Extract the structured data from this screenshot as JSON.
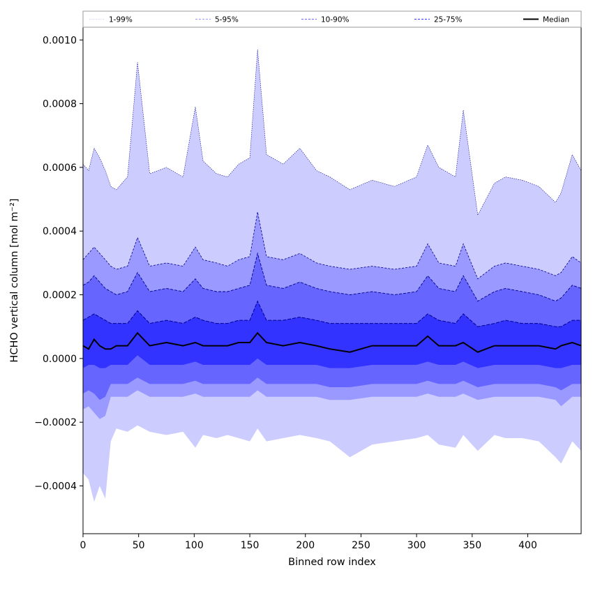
{
  "chart_data": {
    "type": "area",
    "title": "",
    "xlabel": "Binned row index",
    "ylabel": "HCHO vertical column [mol m⁻²]",
    "xlim": [
      0,
      448
    ],
    "ylim": [
      -0.00055,
      0.00104
    ],
    "xticks": [
      0,
      50,
      100,
      150,
      200,
      250,
      300,
      350,
      400
    ],
    "xtick_labels": [
      "0",
      "50",
      "100",
      "150",
      "200",
      "250",
      "300",
      "350",
      "400"
    ],
    "yticks": [
      -0.0004,
      -0.0002,
      0.0,
      0.0002,
      0.0004,
      0.0006,
      0.0008,
      0.001
    ],
    "ytick_labels": [
      "−0.0004",
      "−0.0002",
      "0.0000",
      "0.0002",
      "0.0004",
      "0.0006",
      "0.0008",
      "0.0010"
    ],
    "grid": false,
    "legend_position": "top, above plot, single row",
    "colors": {
      "band_1_99": "#ccccff",
      "band_5_95": "#9999ff",
      "band_10_90": "#6666ff",
      "band_25_75": "#3333ff",
      "percentile_lines": "#00008b",
      "median": "#000000"
    },
    "legend": [
      {
        "label": "1-99%",
        "color": "#ccccff",
        "style": "dotted"
      },
      {
        "label": "5-95%",
        "color": "#9999ff",
        "style": "dashed"
      },
      {
        "label": "10-90%",
        "color": "#6666ff",
        "style": "dashed"
      },
      {
        "label": "25-75%",
        "color": "#3333ff",
        "style": "dashed"
      },
      {
        "label": "Median",
        "color": "#000000",
        "style": "solid"
      }
    ],
    "x": [
      0,
      5,
      10,
      15,
      20,
      25,
      30,
      40,
      49,
      60,
      75,
      90,
      101,
      108,
      120,
      130,
      140,
      150,
      157,
      165,
      180,
      195,
      210,
      222,
      240,
      260,
      280,
      300,
      310,
      320,
      335,
      342,
      355,
      370,
      380,
      395,
      410,
      425,
      430,
      440,
      448
    ],
    "series": [
      {
        "name": "p99",
        "values": [
          0.00061,
          0.00059,
          0.00066,
          0.00063,
          0.00059,
          0.00054,
          0.00053,
          0.00057,
          0.00093,
          0.00058,
          0.0006,
          0.00057,
          0.00079,
          0.00062,
          0.00058,
          0.00057,
          0.00061,
          0.00063,
          0.00097,
          0.00064,
          0.00061,
          0.00066,
          0.00059,
          0.00057,
          0.00053,
          0.00056,
          0.00054,
          0.00057,
          0.00067,
          0.0006,
          0.00057,
          0.00078,
          0.00045,
          0.00055,
          0.00057,
          0.00056,
          0.00054,
          0.00049,
          0.00052,
          0.00064,
          0.00059
        ]
      },
      {
        "name": "p95",
        "values": [
          0.00031,
          0.00033,
          0.00035,
          0.00033,
          0.00031,
          0.00029,
          0.00028,
          0.00029,
          0.00038,
          0.00029,
          0.0003,
          0.00029,
          0.00035,
          0.00031,
          0.0003,
          0.00029,
          0.00031,
          0.00032,
          0.00046,
          0.00032,
          0.00031,
          0.00033,
          0.0003,
          0.00029,
          0.00028,
          0.00029,
          0.00028,
          0.00029,
          0.00036,
          0.0003,
          0.00029,
          0.00036,
          0.00025,
          0.00029,
          0.0003,
          0.00029,
          0.00028,
          0.00026,
          0.00027,
          0.00032,
          0.0003
        ]
      },
      {
        "name": "p90",
        "values": [
          0.00023,
          0.00024,
          0.00026,
          0.00024,
          0.00022,
          0.00021,
          0.0002,
          0.00021,
          0.00027,
          0.00021,
          0.00022,
          0.00021,
          0.00025,
          0.00022,
          0.00021,
          0.00021,
          0.00022,
          0.00023,
          0.00033,
          0.00023,
          0.00022,
          0.00024,
          0.00022,
          0.00021,
          0.0002,
          0.00021,
          0.0002,
          0.00021,
          0.00026,
          0.00022,
          0.00021,
          0.00026,
          0.00018,
          0.00021,
          0.00022,
          0.00021,
          0.0002,
          0.00018,
          0.00019,
          0.00023,
          0.00022
        ]
      },
      {
        "name": "p75",
        "values": [
          0.00012,
          0.00013,
          0.00014,
          0.00013,
          0.00012,
          0.00011,
          0.00011,
          0.00011,
          0.00015,
          0.00011,
          0.00012,
          0.00011,
          0.00013,
          0.00012,
          0.00011,
          0.00011,
          0.00012,
          0.00012,
          0.00018,
          0.00012,
          0.00012,
          0.00013,
          0.00012,
          0.00011,
          0.00011,
          0.00011,
          0.00011,
          0.00011,
          0.00014,
          0.00012,
          0.00011,
          0.00014,
          0.0001,
          0.00011,
          0.00012,
          0.00011,
          0.00011,
          0.0001,
          0.0001,
          0.00012,
          0.00012
        ]
      },
      {
        "name": "median",
        "values": [
          4e-05,
          3e-05,
          6e-05,
          4e-05,
          3e-05,
          3e-05,
          4e-05,
          4e-05,
          8e-05,
          4e-05,
          5e-05,
          4e-05,
          5e-05,
          4e-05,
          4e-05,
          4e-05,
          5e-05,
          5e-05,
          8e-05,
          5e-05,
          4e-05,
          5e-05,
          4e-05,
          3e-05,
          2e-05,
          4e-05,
          4e-05,
          4e-05,
          7e-05,
          4e-05,
          4e-05,
          5e-05,
          2e-05,
          4e-05,
          4e-05,
          4e-05,
          4e-05,
          3e-05,
          4e-05,
          5e-05,
          4e-05
        ]
      },
      {
        "name": "p25",
        "values": [
          -3e-05,
          -2e-05,
          -2e-05,
          -3e-05,
          -3e-05,
          -2e-05,
          -2e-05,
          -2e-05,
          1e-05,
          -2e-05,
          -2e-05,
          -2e-05,
          -1e-05,
          -2e-05,
          -2e-05,
          -2e-05,
          -2e-05,
          -2e-05,
          0.0,
          -2e-05,
          -2e-05,
          -2e-05,
          -2e-05,
          -3e-05,
          -3e-05,
          -2e-05,
          -2e-05,
          -2e-05,
          -1e-05,
          -2e-05,
          -2e-05,
          -1e-05,
          -3e-05,
          -2e-05,
          -2e-05,
          -2e-05,
          -2e-05,
          -3e-05,
          -3e-05,
          -2e-05,
          -2e-05
        ]
      },
      {
        "name": "p10",
        "values": [
          -0.00011,
          -0.0001,
          -0.00011,
          -0.00013,
          -0.00012,
          -8e-05,
          -8e-05,
          -8e-05,
          -6e-05,
          -8e-05,
          -8e-05,
          -8e-05,
          -7e-05,
          -8e-05,
          -8e-05,
          -8e-05,
          -8e-05,
          -8e-05,
          -6e-05,
          -8e-05,
          -8e-05,
          -8e-05,
          -8e-05,
          -9e-05,
          -9e-05,
          -8e-05,
          -8e-05,
          -8e-05,
          -7e-05,
          -8e-05,
          -8e-05,
          -7e-05,
          -9e-05,
          -8e-05,
          -8e-05,
          -8e-05,
          -8e-05,
          -9e-05,
          -0.0001,
          -8e-05,
          -8e-05
        ]
      },
      {
        "name": "p5",
        "values": [
          -0.00016,
          -0.00015,
          -0.00017,
          -0.00019,
          -0.00018,
          -0.00012,
          -0.00012,
          -0.00012,
          -0.0001,
          -0.00012,
          -0.00012,
          -0.00012,
          -0.00011,
          -0.00012,
          -0.00012,
          -0.00012,
          -0.00012,
          -0.00012,
          -0.0001,
          -0.00012,
          -0.00012,
          -0.00012,
          -0.00012,
          -0.00013,
          -0.00013,
          -0.00012,
          -0.00012,
          -0.00012,
          -0.00011,
          -0.00012,
          -0.00012,
          -0.00011,
          -0.00013,
          -0.00012,
          -0.00012,
          -0.00012,
          -0.00012,
          -0.00013,
          -0.00015,
          -0.00012,
          -0.00012
        ]
      },
      {
        "name": "p1",
        "values": [
          -0.00036,
          -0.00038,
          -0.00045,
          -0.0004,
          -0.00044,
          -0.00026,
          -0.00022,
          -0.00023,
          -0.00021,
          -0.00023,
          -0.00024,
          -0.00023,
          -0.00028,
          -0.00024,
          -0.00025,
          -0.00024,
          -0.00025,
          -0.00026,
          -0.00022,
          -0.00026,
          -0.00025,
          -0.00024,
          -0.00025,
          -0.00026,
          -0.00031,
          -0.00027,
          -0.00026,
          -0.00025,
          -0.00024,
          -0.00027,
          -0.00028,
          -0.00024,
          -0.00029,
          -0.00024,
          -0.00025,
          -0.00025,
          -0.00026,
          -0.00031,
          -0.00033,
          -0.00026,
          -0.00029
        ]
      }
    ]
  }
}
